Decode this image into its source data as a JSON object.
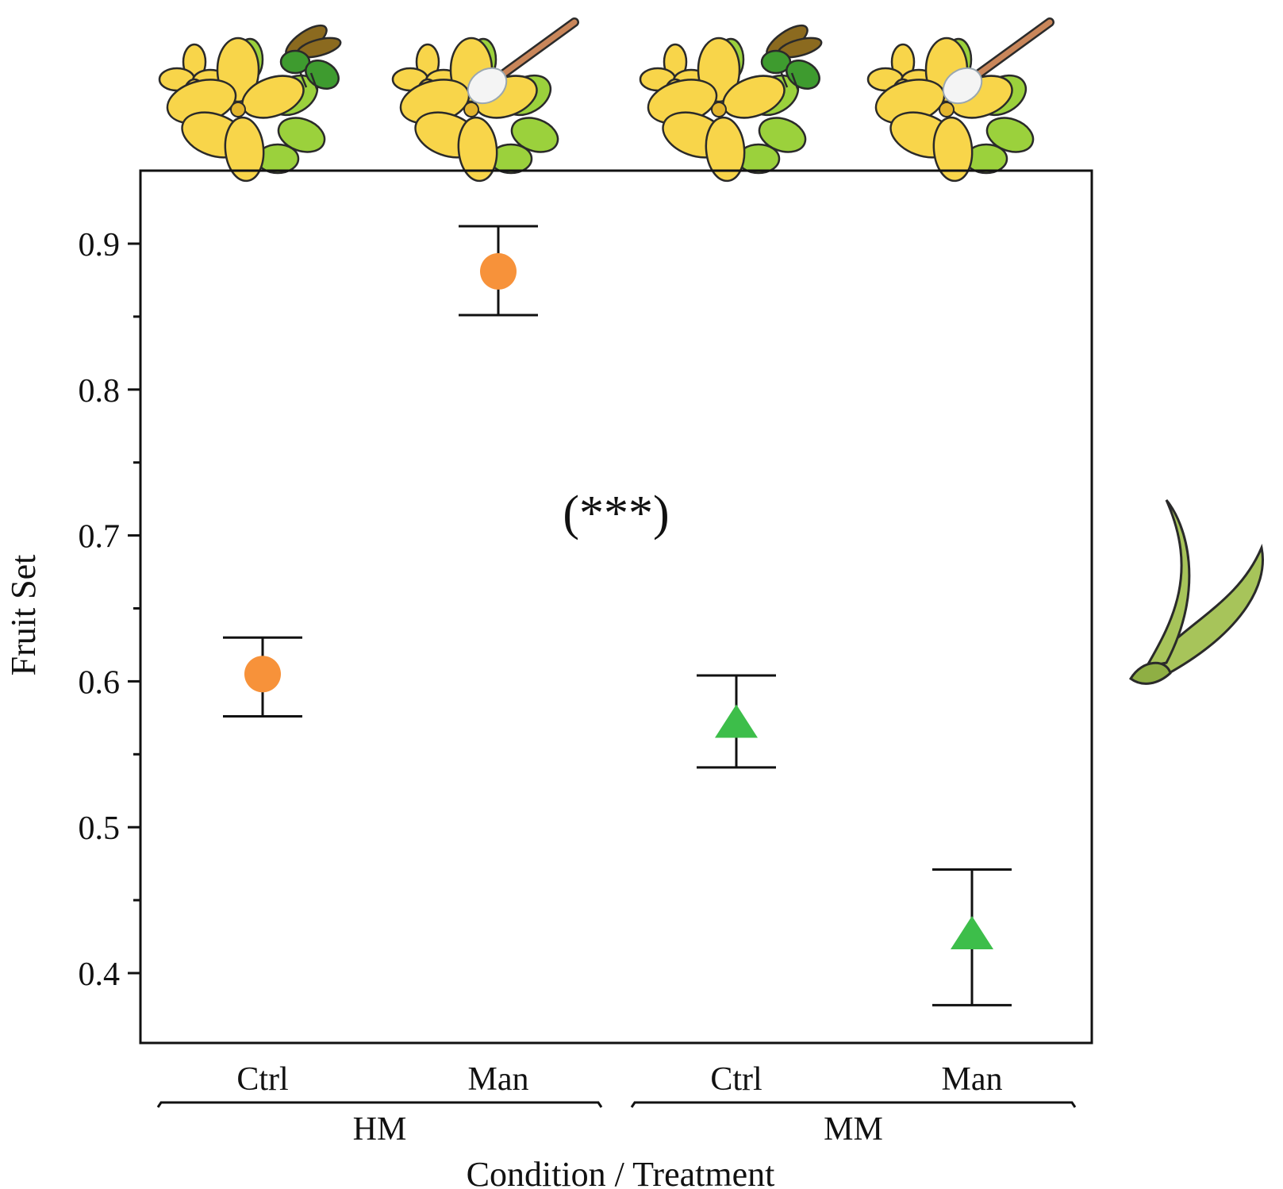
{
  "chart_data": {
    "type": "scatter",
    "title": "",
    "xlabel": "Condition / Treatment",
    "ylabel": "Fruit Set",
    "ylim": [
      0.35,
      0.95
    ],
    "yticks": [
      0.4,
      0.5,
      0.6,
      0.7,
      0.8,
      0.9
    ],
    "ytick_labels": [
      "0.4",
      "0.5",
      "0.6",
      "0.7",
      "0.8",
      "0.9"
    ],
    "yminor": [
      0.45,
      0.55,
      0.65,
      0.75,
      0.85
    ],
    "categories": [
      "Ctrl",
      "Man",
      "Ctrl",
      "Man"
    ],
    "groups": [
      {
        "label": "HM",
        "span": [
          0,
          1
        ]
      },
      {
        "label": "MM",
        "span": [
          2,
          3
        ]
      }
    ],
    "series": [
      {
        "name": "HM",
        "marker": "circle",
        "color": "#F7923A",
        "points": [
          {
            "index": 0,
            "category": "Ctrl",
            "value": 0.605,
            "lower": 0.576,
            "upper": 0.63
          },
          {
            "index": 1,
            "category": "Man",
            "value": 0.881,
            "lower": 0.851,
            "upper": 0.912
          }
        ]
      },
      {
        "name": "MM",
        "marker": "triangle",
        "color": "#3DBE4A",
        "points": [
          {
            "index": 2,
            "category": "Ctrl",
            "value": 0.57,
            "lower": 0.541,
            "upper": 0.604
          },
          {
            "index": 3,
            "category": "Man",
            "value": 0.425,
            "lower": 0.378,
            "upper": 0.471
          }
        ]
      }
    ],
    "annotations": [
      {
        "text": "(***)",
        "x": 1.5,
        "y": 0.715
      }
    ],
    "grid": false,
    "legend": "none"
  },
  "illustrations": [
    {
      "name": "open-pollination",
      "description": "flower cluster with bee",
      "category_index": 0
    },
    {
      "name": "hand-pollination",
      "description": "flower cluster with brush",
      "category_index": 1
    },
    {
      "name": "open-pollination",
      "description": "flower cluster with bee",
      "category_index": 2
    },
    {
      "name": "hand-pollination",
      "description": "flower cluster with brush",
      "category_index": 3
    }
  ],
  "fruit_illustration": {
    "name": "seed-pods"
  },
  "colors": {
    "petal": "#F8D54A",
    "petal_stroke": "#2a2a2a",
    "leaf": "#9BD13C",
    "bee_body": "#3E9B2F",
    "bee_wing": "#8B6A1F",
    "brush_handle": "#C9865A",
    "brush_tip": "#F4F4F4",
    "pod": "#A7C45A"
  }
}
